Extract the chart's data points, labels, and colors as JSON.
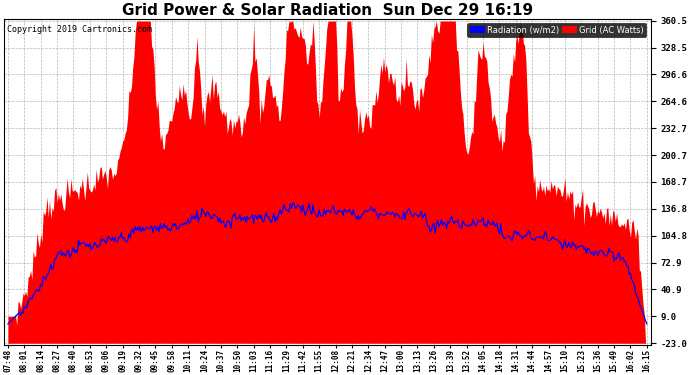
{
  "title": "Grid Power & Solar Radiation  Sun Dec 29 16:19",
  "copyright": "Copyright 2019 Cartronics.com",
  "y_min": -23.0,
  "y_max": 360.5,
  "yticks": [
    360.5,
    328.5,
    296.6,
    264.6,
    232.7,
    200.7,
    168.7,
    136.8,
    104.8,
    72.9,
    40.9,
    9.0,
    -23.0
  ],
  "legend_radiation_label": "Radiation (w/m2)",
  "legend_grid_label": "Grid (AC Watts)",
  "radiation_color": "#0000FF",
  "grid_color": "#FF0000",
  "background_color": "#FFFFFF",
  "plot_bg_color": "#FFFFFF",
  "title_fontsize": 11,
  "x_labels": [
    "07:48",
    "08:01",
    "08:14",
    "08:27",
    "08:40",
    "08:53",
    "09:06",
    "09:19",
    "09:32",
    "09:45",
    "09:58",
    "10:11",
    "10:24",
    "10:37",
    "10:50",
    "11:03",
    "11:16",
    "11:29",
    "11:42",
    "11:55",
    "12:08",
    "12:21",
    "12:34",
    "12:47",
    "13:00",
    "13:13",
    "13:26",
    "13:39",
    "13:52",
    "14:05",
    "14:18",
    "14:31",
    "14:44",
    "14:57",
    "15:10",
    "15:23",
    "15:36",
    "15:49",
    "16:02",
    "16:15"
  ]
}
